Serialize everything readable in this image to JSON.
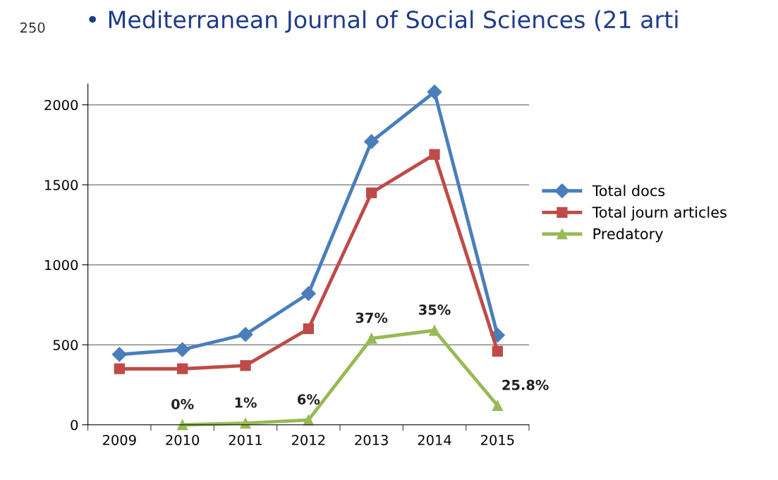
{
  "chart_data": {
    "type": "line",
    "title": "• Mediterranean Journal of Social Sciences (21 arti",
    "annotations": [
      "250",
      {
        "text": "0%",
        "x": "2010",
        "y": 0
      },
      {
        "text": "1%",
        "x": "2011",
        "y": 10
      },
      {
        "text": "6%",
        "x": "2012",
        "y": 30
      },
      {
        "text": "37%",
        "x": "2013",
        "y": 540
      },
      {
        "text": "35%",
        "x": "2014",
        "y": 590
      },
      {
        "text": "25.8%",
        "x": "2015",
        "y": 120
      }
    ],
    "categories": [
      "2009",
      "2010",
      "2011",
      "2012",
      "2013",
      "2014",
      "2015"
    ],
    "series": [
      {
        "name": "Total docs",
        "color": "#4a7ebb",
        "marker": "diamond",
        "values": [
          440,
          470,
          565,
          820,
          1770,
          2080,
          560
        ]
      },
      {
        "name": "Total journ articles",
        "color": "#be4b48",
        "marker": "square",
        "values": [
          350,
          350,
          370,
          600,
          1450,
          1690,
          460
        ]
      },
      {
        "name": "Predatory",
        "color": "#98b954",
        "marker": "triangle",
        "values": [
          null,
          0,
          10,
          30,
          540,
          590,
          120
        ]
      }
    ],
    "ylim": [
      0,
      2130
    ],
    "yticks": [
      0,
      500,
      1000,
      1500,
      2000
    ],
    "grid": "y",
    "legend": "right",
    "line_style": "solid"
  }
}
